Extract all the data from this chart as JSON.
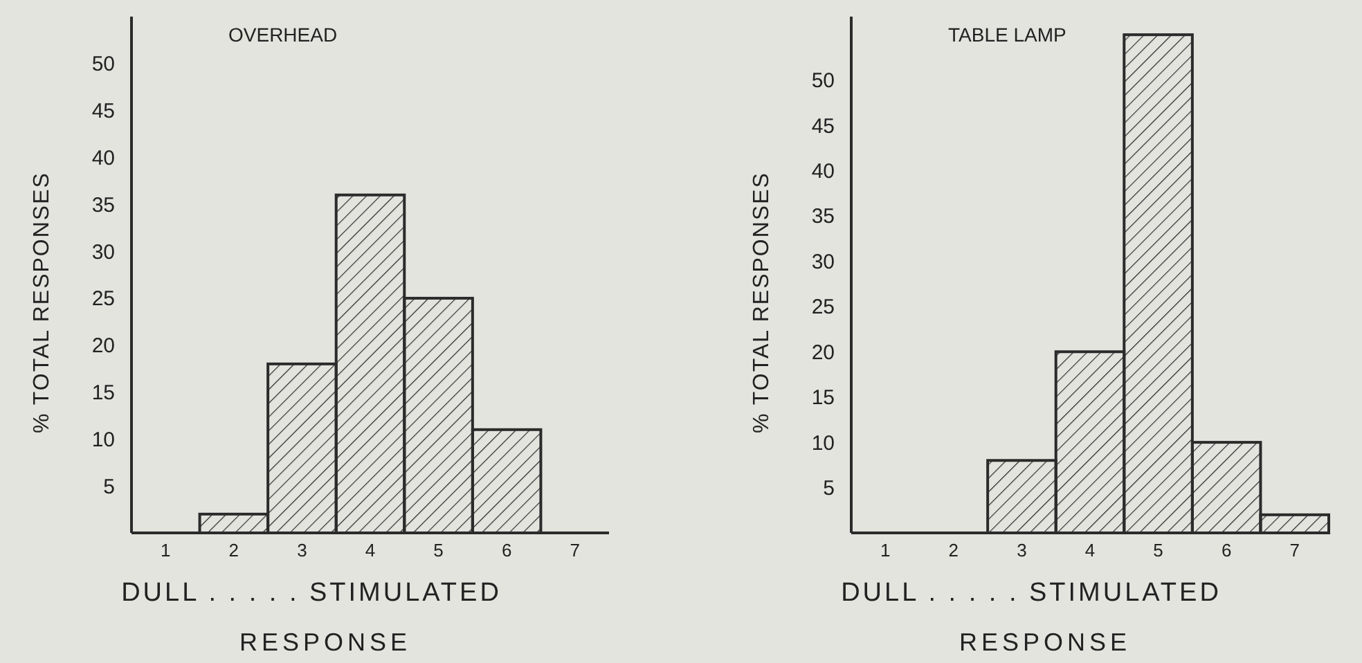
{
  "chart_data": [
    {
      "type": "histogram",
      "title": "OVERHEAD",
      "xlabel": "RESPONSE",
      "ylabel": "% TOTAL RESPONSES",
      "annotations": [
        "DULL . . . . . STIMULATED"
      ],
      "bins": [
        0.5,
        1.5,
        2.5,
        3.5,
        4.5,
        5.5,
        6.5,
        7.5
      ],
      "values": [
        0,
        2,
        18,
        36,
        25,
        11,
        0
      ],
      "color": "#2b2b2b",
      "xlim": [
        0.5,
        7.5
      ],
      "xticks": [
        1,
        2,
        3,
        4,
        5,
        6,
        7
      ],
      "ylim": [
        0,
        55
      ],
      "yticks": [
        5,
        10,
        15,
        20,
        25,
        30,
        35,
        40,
        45,
        50
      ]
    },
    {
      "type": "histogram",
      "title": "TABLE LAMP",
      "xlabel": "RESPONSE",
      "ylabel": "% TOTAL RESPONSES",
      "annotations": [
        "DULL . . . . . STIMULATED"
      ],
      "bins": [
        0.5,
        1.5,
        2.5,
        3.5,
        4.5,
        5.5,
        6.5,
        7.5
      ],
      "values": [
        0,
        0,
        8,
        20,
        55,
        10,
        2
      ],
      "color": "#2b2b2b",
      "xlim": [
        0.5,
        7.5
      ],
      "xticks": [
        1,
        2,
        3,
        4,
        5,
        6,
        7
      ],
      "ylim": [
        0,
        57
      ],
      "yticks": [
        5,
        10,
        15,
        20,
        25,
        30,
        35,
        40,
        45,
        50
      ]
    }
  ]
}
